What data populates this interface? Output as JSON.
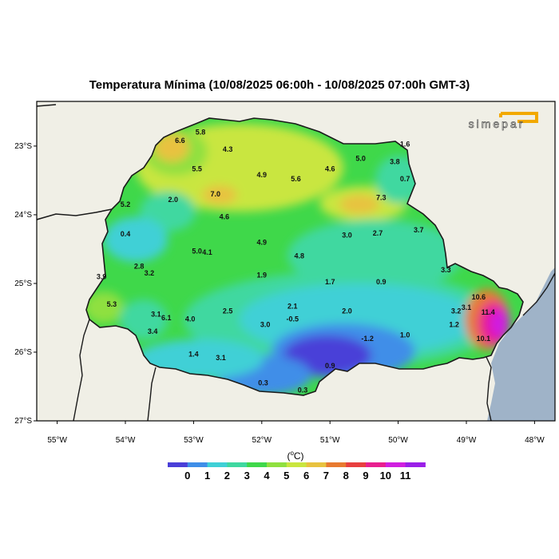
{
  "title": "Temperatura Mínima (10/08/2025 06:00h - 10/08/2025 07:00h GMT-3)",
  "logo_text": "simepar",
  "colors": {
    "background": "#f0efe6",
    "ocean": "#9fb3c8",
    "state_base": "#3fd84a",
    "border": "#1a1a1a",
    "logo": "#f2a900"
  },
  "axes": {
    "lat_labels": [
      "23°S",
      "24°S",
      "25°S",
      "26°S",
      "27°S"
    ],
    "lon_labels": [
      "55°W",
      "54°W",
      "53°W",
      "52°W",
      "51°W",
      "50°W",
      "49°W",
      "48°W"
    ]
  },
  "colorbar": {
    "unit_base": "(",
    "unit_sup": "o",
    "unit_rest": "C)",
    "colors": [
      "#4a3fd8",
      "#3f8ee8",
      "#3fd0d6",
      "#3fd8a0",
      "#3fd84a",
      "#8fe03f",
      "#c9e63f",
      "#e8c23f",
      "#e87a2f",
      "#e83f3f",
      "#e81f8f",
      "#d01fe0",
      "#9a1fe8"
    ],
    "labels": [
      "0",
      "1",
      "2",
      "3",
      "4",
      "5",
      "6",
      "7",
      "8",
      "9",
      "10",
      "11"
    ]
  },
  "station_values": [
    {
      "text": "5.8",
      "lon": -52.9,
      "lat": -22.8
    },
    {
      "text": "6.6",
      "lon": -53.2,
      "lat": -22.92
    },
    {
      "text": "4.3",
      "lon": -52.5,
      "lat": -23.05
    },
    {
      "text": "1.6",
      "lon": -49.9,
      "lat": -22.97
    },
    {
      "text": "5.0",
      "lon": -50.55,
      "lat": -23.18
    },
    {
      "text": "3.8",
      "lon": -50.05,
      "lat": -23.23
    },
    {
      "text": "5.5",
      "lon": -52.95,
      "lat": -23.33
    },
    {
      "text": "4.9",
      "lon": -52.0,
      "lat": -23.42
    },
    {
      "text": "5.6",
      "lon": -51.5,
      "lat": -23.48
    },
    {
      "text": "4.6",
      "lon": -51.0,
      "lat": -23.33
    },
    {
      "text": "0.7",
      "lon": -49.9,
      "lat": -23.48
    },
    {
      "text": "7.0",
      "lon": -52.68,
      "lat": -23.7
    },
    {
      "text": "2.0",
      "lon": -53.3,
      "lat": -23.78
    },
    {
      "text": "7.3",
      "lon": -50.25,
      "lat": -23.75
    },
    {
      "text": "5.2",
      "lon": -54.0,
      "lat": -23.85
    },
    {
      "text": "4.6",
      "lon": -52.55,
      "lat": -24.03
    },
    {
      "text": "0.4",
      "lon": -54.0,
      "lat": -24.28
    },
    {
      "text": "3.0",
      "lon": -50.75,
      "lat": -24.3
    },
    {
      "text": "2.7",
      "lon": -50.3,
      "lat": -24.27
    },
    {
      "text": "3.7",
      "lon": -49.7,
      "lat": -24.22
    },
    {
      "text": "4.9",
      "lon": -52.0,
      "lat": -24.4
    },
    {
      "text": "5.0",
      "lon": -52.95,
      "lat": -24.53
    },
    {
      "text": "4.1",
      "lon": -52.8,
      "lat": -24.55
    },
    {
      "text": "4.8",
      "lon": -51.45,
      "lat": -24.6
    },
    {
      "text": "2.8",
      "lon": -53.8,
      "lat": -24.75
    },
    {
      "text": "3.2",
      "lon": -53.65,
      "lat": -24.85
    },
    {
      "text": "3.9",
      "lon": -54.35,
      "lat": -24.9
    },
    {
      "text": "1.9",
      "lon": -52.0,
      "lat": -24.88
    },
    {
      "text": "3.3",
      "lon": -49.3,
      "lat": -24.8
    },
    {
      "text": "1.7",
      "lon": -51.0,
      "lat": -24.98
    },
    {
      "text": "0.9",
      "lon": -50.25,
      "lat": -24.98
    },
    {
      "text": "5.3",
      "lon": -54.2,
      "lat": -25.3
    },
    {
      "text": "10.6",
      "lon": -48.82,
      "lat": -25.2
    },
    {
      "text": "2.1",
      "lon": -51.55,
      "lat": -25.33
    },
    {
      "text": "3.1",
      "lon": -49.0,
      "lat": -25.35
    },
    {
      "text": "3.2",
      "lon": -49.15,
      "lat": -25.4
    },
    {
      "text": "11.4",
      "lon": -48.68,
      "lat": -25.42
    },
    {
      "text": "3.1",
      "lon": -53.55,
      "lat": -25.45
    },
    {
      "text": "6.1",
      "lon": -53.4,
      "lat": -25.5
    },
    {
      "text": "2.5",
      "lon": -52.5,
      "lat": -25.4
    },
    {
      "text": "2.0",
      "lon": -50.75,
      "lat": -25.4
    },
    {
      "text": "-0.5",
      "lon": -51.55,
      "lat": -25.52
    },
    {
      "text": "4.0",
      "lon": -53.05,
      "lat": -25.52
    },
    {
      "text": "3.0",
      "lon": -51.95,
      "lat": -25.6
    },
    {
      "text": "1.2",
      "lon": -49.18,
      "lat": -25.6
    },
    {
      "text": "3.4",
      "lon": -53.6,
      "lat": -25.7
    },
    {
      "text": "1.0",
      "lon": -49.9,
      "lat": -25.75
    },
    {
      "text": "-1.2",
      "lon": -50.45,
      "lat": -25.8
    },
    {
      "text": "10.1",
      "lon": -48.75,
      "lat": -25.8
    },
    {
      "text": "1.4",
      "lon": -53.0,
      "lat": -26.03
    },
    {
      "text": "3.1",
      "lon": -52.6,
      "lat": -26.08
    },
    {
      "text": "0.9",
      "lon": -51.0,
      "lat": -26.2
    },
    {
      "text": "0.3",
      "lon": -51.98,
      "lat": -26.45
    },
    {
      "text": "0.3",
      "lon": -51.4,
      "lat": -26.55
    }
  ]
}
